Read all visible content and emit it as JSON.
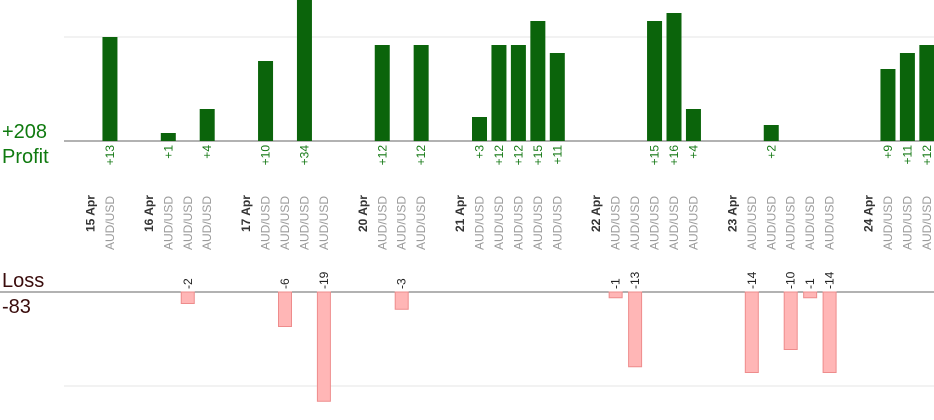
{
  "chart_data": {
    "type": "bar",
    "profit_total": "+208",
    "profit_label": "Profit",
    "loss_label": "Loss",
    "loss_total": "-83",
    "profit_axis_max": 13,
    "loss_axis_max": 20,
    "dates": [
      {
        "label": "15 Apr",
        "slot": 0
      },
      {
        "label": "16 Apr",
        "slot": 3
      },
      {
        "label": "17 Apr",
        "slot": 8
      },
      {
        "label": "20 Apr",
        "slot": 14
      },
      {
        "label": "21 Apr",
        "slot": 19
      },
      {
        "label": "22 Apr",
        "slot": 26
      },
      {
        "label": "23 Apr",
        "slot": 33
      },
      {
        "label": "24 Apr",
        "slot": 40
      }
    ],
    "trades": [
      {
        "pair": "AUD/USD",
        "profit": 13,
        "label": "+13",
        "slot": 1
      },
      {
        "pair": "AUD/USD",
        "profit": 1,
        "label": "+1",
        "slot": 4
      },
      {
        "pair": "AUD/USD",
        "loss": 2,
        "label": "-2",
        "slot": 5
      },
      {
        "pair": "AUD/USD",
        "profit": 4,
        "label": "+4",
        "slot": 6
      },
      {
        "pair": "AUD/USD",
        "profit": 10,
        "label": "+10",
        "slot": 9
      },
      {
        "pair": "AUD/USD",
        "loss": 6,
        "label": "-6",
        "slot": 10
      },
      {
        "pair": "AUD/USD",
        "profit": 34,
        "label": "+34",
        "slot": 11
      },
      {
        "pair": "AUD/USD",
        "loss": 19,
        "label": "-19",
        "slot": 12
      },
      {
        "pair": "AUD/USD",
        "profit": 12,
        "label": "+12",
        "slot": 15
      },
      {
        "pair": "AUD/USD",
        "loss": 3,
        "label": "-3",
        "slot": 16
      },
      {
        "pair": "AUD/USD",
        "profit": 12,
        "label": "+12",
        "slot": 17
      },
      {
        "pair": "AUD/USD",
        "profit": 3,
        "label": "+3",
        "slot": 20
      },
      {
        "pair": "AUD/USD",
        "profit": 12,
        "label": "+12",
        "slot": 21
      },
      {
        "pair": "AUD/USD",
        "profit": 12,
        "label": "+12",
        "slot": 22
      },
      {
        "pair": "AUD/USD",
        "profit": 15,
        "label": "+15",
        "slot": 23
      },
      {
        "pair": "AUD/USD",
        "profit": 11,
        "label": "+11",
        "slot": 24
      },
      {
        "pair": "AUD/USD",
        "loss": 1,
        "label": "-1",
        "slot": 27
      },
      {
        "pair": "AUD/USD",
        "loss": 13,
        "label": "-13",
        "slot": 28
      },
      {
        "pair": "AUD/USD",
        "profit": 15,
        "label": "+15",
        "slot": 29
      },
      {
        "pair": "AUD/USD",
        "profit": 16,
        "label": "+16",
        "slot": 30
      },
      {
        "pair": "AUD/USD",
        "profit": 4,
        "label": "+4",
        "slot": 31
      },
      {
        "pair": "AUD/USD",
        "loss": 14,
        "label": "-14",
        "slot": 34
      },
      {
        "pair": "AUD/USD",
        "profit": 2,
        "label": "+2",
        "slot": 35
      },
      {
        "pair": "AUD/USD",
        "loss": 10,
        "label": "-10",
        "slot": 36
      },
      {
        "pair": "AUD/USD",
        "loss": 1,
        "label": "-1",
        "slot": 37
      },
      {
        "pair": "AUD/USD",
        "loss": 14,
        "label": "-14",
        "slot": 38
      },
      {
        "pair": "AUD/USD",
        "profit": 9,
        "label": "+9",
        "slot": 41
      },
      {
        "pair": "AUD/USD",
        "profit": 11,
        "label": "+11",
        "slot": 42
      },
      {
        "pair": "AUD/USD",
        "profit": 12,
        "label": "+12",
        "slot": 43
      }
    ],
    "colors": {
      "profit_bar": "#0b640b",
      "loss_bar": "#ffb6b6",
      "profit_text": "#167a16",
      "loss_text": "#3a0c0c"
    }
  }
}
